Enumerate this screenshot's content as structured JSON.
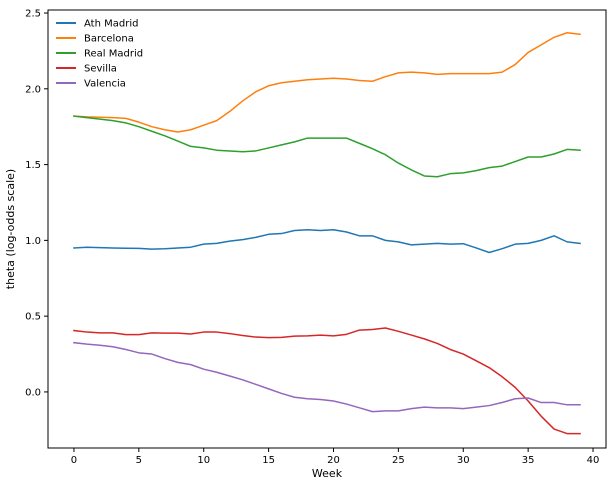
{
  "chart_data": {
    "type": "line",
    "xlabel": "Week",
    "ylabel": "theta (log-odds scale)",
    "xlim": [
      -2,
      41
    ],
    "ylim": [
      -0.37,
      2.52
    ],
    "x_ticks": [
      0,
      5,
      10,
      15,
      20,
      25,
      30,
      35,
      40
    ],
    "y_ticks": [
      0.0,
      0.5,
      1.0,
      1.5,
      2.0,
      2.5
    ],
    "y_tick_labels": [
      "0.0",
      "0.5",
      "1.0",
      "1.5",
      "2.0",
      "2.5"
    ],
    "grid": false,
    "legend_position": "top-left",
    "x": [
      0,
      1,
      2,
      3,
      4,
      5,
      6,
      7,
      8,
      9,
      10,
      11,
      12,
      13,
      14,
      15,
      16,
      17,
      18,
      19,
      20,
      21,
      22,
      23,
      24,
      25,
      26,
      27,
      28,
      29,
      30,
      31,
      32,
      33,
      34,
      35,
      36,
      37,
      38,
      39
    ],
    "series": [
      {
        "name": "Ath Madrid",
        "color": "#1f77b4",
        "values": [
          0.95,
          0.955,
          0.952,
          0.95,
          0.948,
          0.947,
          0.942,
          0.945,
          0.95,
          0.955,
          0.975,
          0.98,
          0.995,
          1.005,
          1.02,
          1.04,
          1.045,
          1.065,
          1.07,
          1.065,
          1.07,
          1.055,
          1.03,
          1.03,
          1.0,
          0.99,
          0.97,
          0.975,
          0.98,
          0.975,
          0.978,
          0.95,
          0.92,
          0.945,
          0.975,
          0.98,
          1.0,
          1.03,
          0.99,
          0.98
        ]
      },
      {
        "name": "Barcelona",
        "color": "#ff7f0e",
        "values": [
          1.82,
          1.815,
          1.812,
          1.81,
          1.805,
          1.78,
          1.75,
          1.73,
          1.715,
          1.73,
          1.76,
          1.79,
          1.85,
          1.92,
          1.98,
          2.02,
          2.04,
          2.05,
          2.06,
          2.065,
          2.07,
          2.065,
          2.055,
          2.05,
          2.08,
          2.105,
          2.11,
          2.105,
          2.095,
          2.1,
          2.1,
          2.1,
          2.1,
          2.11,
          2.16,
          2.24,
          2.29,
          2.34,
          2.37,
          2.36
        ]
      },
      {
        "name": "Real Madrid",
        "color": "#2ca02c",
        "values": [
          1.82,
          1.81,
          1.8,
          1.79,
          1.775,
          1.75,
          1.72,
          1.69,
          1.655,
          1.62,
          1.61,
          1.595,
          1.59,
          1.585,
          1.59,
          1.61,
          1.63,
          1.65,
          1.675,
          1.675,
          1.675,
          1.675,
          1.64,
          1.605,
          1.565,
          1.51,
          1.465,
          1.425,
          1.42,
          1.44,
          1.445,
          1.46,
          1.48,
          1.49,
          1.52,
          1.55,
          1.55,
          1.57,
          1.6,
          1.595
        ]
      },
      {
        "name": "Sevilla",
        "color": "#d62728",
        "values": [
          0.405,
          0.395,
          0.39,
          0.39,
          0.378,
          0.378,
          0.39,
          0.388,
          0.388,
          0.382,
          0.395,
          0.395,
          0.385,
          0.372,
          0.362,
          0.358,
          0.36,
          0.368,
          0.37,
          0.375,
          0.37,
          0.38,
          0.408,
          0.412,
          0.422,
          0.4,
          0.375,
          0.35,
          0.32,
          0.28,
          0.25,
          0.205,
          0.16,
          0.1,
          0.03,
          -0.06,
          -0.16,
          -0.245,
          -0.275,
          -0.275
        ]
      },
      {
        "name": "Valencia",
        "color": "#9467bd",
        "values": [
          0.325,
          0.315,
          0.308,
          0.298,
          0.28,
          0.258,
          0.25,
          0.22,
          0.195,
          0.18,
          0.15,
          0.13,
          0.105,
          0.08,
          0.05,
          0.02,
          -0.01,
          -0.035,
          -0.045,
          -0.05,
          -0.06,
          -0.08,
          -0.105,
          -0.13,
          -0.125,
          -0.125,
          -0.11,
          -0.1,
          -0.105,
          -0.105,
          -0.11,
          -0.1,
          -0.09,
          -0.07,
          -0.045,
          -0.04,
          -0.07,
          -0.07,
          -0.085,
          -0.085
        ]
      }
    ]
  }
}
